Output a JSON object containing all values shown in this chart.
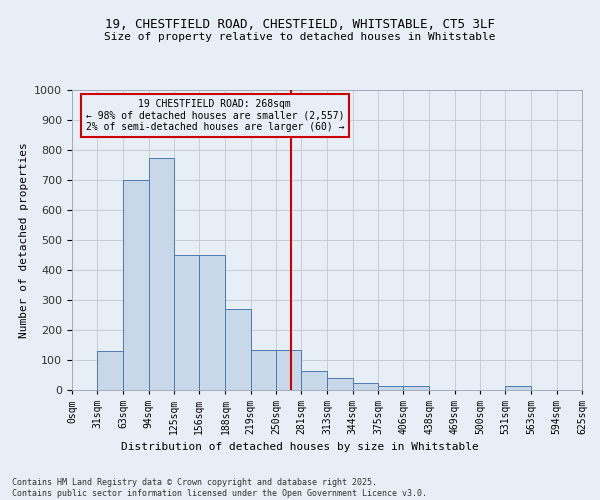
{
  "title1": "19, CHESTFIELD ROAD, CHESTFIELD, WHITSTABLE, CT5 3LF",
  "title2": "Size of property relative to detached houses in Whitstable",
  "xlabel": "Distribution of detached houses by size in Whitstable",
  "ylabel": "Number of detached properties",
  "footnote1": "Contains HM Land Registry data © Crown copyright and database right 2025.",
  "footnote2": "Contains public sector information licensed under the Open Government Licence v3.0.",
  "annotation_title": "19 CHESTFIELD ROAD: 268sqm",
  "annotation_line1": "← 98% of detached houses are smaller (2,557)",
  "annotation_line2": "2% of semi-detached houses are larger (60) →",
  "property_size": 268,
  "bin_edges": [
    0,
    31,
    63,
    94,
    125,
    156,
    188,
    219,
    250,
    281,
    313,
    344,
    375,
    406,
    438,
    469,
    500,
    531,
    563,
    594,
    625
  ],
  "bar_heights": [
    0,
    130,
    700,
    775,
    450,
    450,
    270,
    135,
    135,
    65,
    40,
    25,
    15,
    15,
    0,
    0,
    0,
    15,
    0,
    0
  ],
  "bar_color": "#c8d8e8",
  "bar_edge_color": "#4a7ab5",
  "vline_color": "#cc0000",
  "annotation_box_color": "#cc0000",
  "grid_color": "#c0c8d8",
  "bg_color": "#e8eef5",
  "ylim": [
    0,
    1000
  ],
  "yticks": [
    0,
    100,
    200,
    300,
    400,
    500,
    600,
    700,
    800,
    900,
    1000
  ],
  "tick_labels": [
    "0sqm",
    "31sqm",
    "63sqm",
    "94sqm",
    "125sqm",
    "156sqm",
    "188sqm",
    "219sqm",
    "250sqm",
    "281sqm",
    "313sqm",
    "344sqm",
    "375sqm",
    "406sqm",
    "438sqm",
    "469sqm",
    "500sqm",
    "531sqm",
    "563sqm",
    "594sqm",
    "625sqm"
  ]
}
